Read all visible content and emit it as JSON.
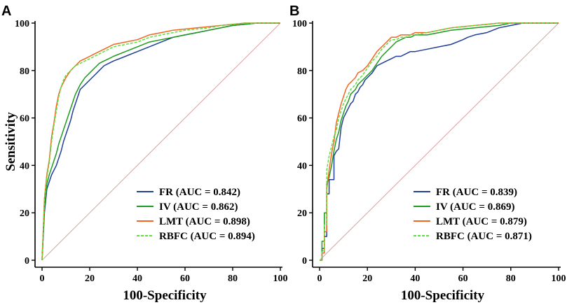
{
  "chart_data": [
    {
      "type": "line",
      "panel": "A",
      "xlabel": "100-Specificity",
      "ylabel": "Sensitivity",
      "xlim": [
        0,
        100
      ],
      "ylim": [
        0,
        100
      ],
      "xticks": [
        0,
        20,
        40,
        60,
        80,
        100
      ],
      "yticks": [
        0,
        20,
        40,
        60,
        80,
        100
      ],
      "diagonal_color": "#d9a0a0",
      "series": [
        {
          "name": "FR",
          "legend": "FR (AUC = 0.842)",
          "color": "#1f3f99",
          "dashed": false,
          "x": [
            0,
            1,
            2,
            3,
            4,
            5,
            6,
            7,
            8,
            9,
            10,
            11,
            12,
            13,
            14,
            15,
            16,
            17,
            18,
            20,
            22,
            24,
            26,
            28,
            30,
            35,
            40,
            45,
            50,
            55,
            60,
            65,
            70,
            75,
            80,
            85,
            90,
            95,
            100
          ],
          "y": [
            0,
            20,
            30,
            33,
            36,
            38,
            40,
            43,
            46,
            50,
            53,
            56,
            59,
            63,
            66,
            69,
            72,
            73,
            74,
            76,
            78,
            80,
            82,
            83,
            84,
            86,
            88,
            90,
            92,
            94,
            95,
            96,
            97,
            98,
            99,
            99.5,
            100,
            100,
            100
          ]
        },
        {
          "name": "IV",
          "legend": "IV (AUC = 0.862)",
          "color": "#1e9a1e",
          "dashed": false,
          "x": [
            0,
            1,
            2,
            3,
            4,
            5,
            6,
            7,
            8,
            9,
            10,
            11,
            12,
            13,
            14,
            15,
            16,
            18,
            20,
            22,
            24,
            26,
            28,
            30,
            35,
            40,
            45,
            50,
            55,
            60,
            65,
            70,
            75,
            80,
            85,
            90,
            95,
            100
          ],
          "y": [
            0,
            22,
            32,
            36,
            39,
            42,
            45,
            49,
            52,
            55,
            58,
            61,
            64,
            67,
            70,
            72,
            74,
            77,
            79,
            81,
            83,
            84,
            85,
            86,
            88,
            90,
            92,
            93,
            94,
            95,
            96,
            97,
            98,
            99,
            99.5,
            100,
            100,
            100
          ]
        },
        {
          "name": "LMT",
          "legend": "LMT (AUC = 0.898)",
          "color": "#f26522",
          "dashed": false,
          "x": [
            0,
            1,
            2,
            3,
            4,
            5,
            6,
            7,
            8,
            9,
            10,
            12,
            14,
            16,
            18,
            20,
            22,
            24,
            26,
            28,
            30,
            35,
            40,
            45,
            50,
            55,
            60,
            65,
            70,
            75,
            80,
            85,
            90,
            95,
            100
          ],
          "y": [
            0,
            26,
            36,
            42,
            52,
            58,
            65,
            70,
            73,
            75,
            77,
            80,
            82,
            84,
            85,
            86,
            87,
            88,
            89,
            90,
            91,
            92,
            93,
            95,
            96,
            97,
            97.5,
            98,
            98.5,
            99,
            99.5,
            100,
            100,
            100,
            100
          ]
        },
        {
          "name": "RBFC",
          "legend": "RBFC (AUC = 0.894)",
          "color": "#5ce03c",
          "dashed": true,
          "x": [
            0,
            1,
            2,
            3,
            4,
            5,
            6,
            7,
            8,
            9,
            10,
            12,
            14,
            16,
            18,
            20,
            22,
            24,
            26,
            28,
            30,
            35,
            40,
            45,
            50,
            55,
            60,
            65,
            70,
            75,
            80,
            85,
            90,
            95,
            100
          ],
          "y": [
            0,
            25,
            35,
            41,
            50,
            57,
            63,
            69,
            73,
            76,
            78,
            80,
            82,
            83,
            84,
            85,
            86,
            87,
            88,
            89,
            90,
            91,
            92,
            94,
            95,
            96,
            97,
            97.5,
            98,
            99,
            99.5,
            100,
            100,
            100,
            100
          ]
        }
      ]
    },
    {
      "type": "line",
      "panel": "B",
      "xlabel": "100-Specificity",
      "ylabel": "",
      "xlim": [
        0,
        100
      ],
      "ylim": [
        0,
        100
      ],
      "xticks": [
        0,
        20,
        40,
        60,
        80,
        100
      ],
      "yticks": [
        0,
        20,
        40,
        60,
        80,
        100
      ],
      "diagonal_color": "#d9a0a0",
      "series": [
        {
          "name": "FR",
          "legend": "FR (AUC = 0.839)",
          "color": "#1f3f99",
          "dashed": false,
          "x": [
            0,
            1,
            1,
            2,
            2,
            3,
            3,
            4,
            4,
            5,
            6,
            6,
            7,
            8,
            9,
            10,
            11,
            12,
            13,
            14,
            15,
            16,
            17,
            18,
            19,
            20,
            22,
            24,
            26,
            28,
            30,
            32,
            34,
            36,
            38,
            40,
            45,
            50,
            55,
            60,
            62,
            65,
            70,
            75,
            80,
            85,
            90,
            95,
            100
          ],
          "y": [
            0,
            0,
            5,
            5,
            10,
            10,
            28,
            28,
            34,
            34,
            34,
            44,
            46,
            47,
            56,
            60,
            62,
            64,
            66,
            67,
            70,
            71,
            73,
            74,
            76,
            77,
            79,
            82,
            83,
            84,
            85,
            86,
            86,
            87,
            88,
            88,
            89,
            90,
            91,
            93,
            94,
            95,
            96,
            98,
            99,
            100,
            100,
            100,
            100
          ]
        },
        {
          "name": "IV",
          "legend": "IV (AUC = 0.869)",
          "color": "#1e9a1e",
          "dashed": false,
          "x": [
            0,
            1,
            1,
            2,
            2,
            3,
            3,
            4,
            5,
            6,
            7,
            8,
            9,
            10,
            11,
            12,
            13,
            14,
            15,
            16,
            18,
            20,
            22,
            24,
            26,
            28,
            30,
            32,
            34,
            36,
            38,
            40,
            45,
            50,
            55,
            60,
            65,
            70,
            75,
            80,
            85,
            90,
            95,
            100
          ],
          "y": [
            0,
            0,
            8,
            8,
            20,
            20,
            32,
            35,
            40,
            46,
            51,
            54,
            59,
            62,
            65,
            67,
            70,
            71,
            72,
            74,
            76,
            78,
            80,
            83,
            86,
            88,
            90,
            92,
            93,
            94,
            94,
            95,
            95,
            96,
            97,
            97.5,
            98,
            98.5,
            99,
            100,
            100,
            100,
            100,
            100
          ]
        },
        {
          "name": "LMT",
          "legend": "LMT (AUC = 0.879)",
          "color": "#f26522",
          "dashed": false,
          "x": [
            0,
            1,
            1,
            2,
            2,
            3,
            3,
            4,
            5,
            6,
            7,
            8,
            9,
            10,
            11,
            12,
            13,
            14,
            15,
            16,
            18,
            20,
            22,
            24,
            26,
            28,
            30,
            32,
            34,
            36,
            38,
            40,
            45,
            50,
            55,
            60,
            65,
            70,
            75,
            80,
            85,
            90,
            95,
            100
          ],
          "y": [
            0,
            0,
            3,
            3,
            12,
            12,
            30,
            38,
            45,
            50,
            58,
            62,
            66,
            69,
            72,
            74,
            75,
            76,
            77,
            79,
            80,
            82,
            85,
            88,
            90,
            92,
            94,
            94,
            95,
            95,
            95,
            96,
            96,
            97,
            98,
            98.5,
            99,
            99.5,
            100,
            100,
            100,
            100,
            100,
            100
          ]
        },
        {
          "name": "RBFC",
          "legend": "RBFC (AUC = 0.871)",
          "color": "#5ce03c",
          "dashed": true,
          "x": [
            0,
            1,
            1,
            2,
            2,
            3,
            3,
            4,
            5,
            6,
            7,
            8,
            9,
            10,
            11,
            12,
            13,
            14,
            15,
            16,
            18,
            20,
            22,
            24,
            26,
            28,
            30,
            32,
            34,
            36,
            38,
            40,
            45,
            50,
            55,
            60,
            65,
            70,
            75,
            80,
            85,
            90,
            95,
            100
          ],
          "y": [
            0,
            0,
            4,
            4,
            15,
            15,
            38,
            44,
            48,
            52,
            55,
            60,
            63,
            66,
            68,
            70,
            72,
            73,
            74,
            76,
            78,
            81,
            84,
            86,
            89,
            91,
            93,
            93,
            94,
            94,
            95,
            95,
            96,
            97,
            98,
            98.5,
            99,
            99.5,
            100,
            100,
            100,
            100,
            100,
            100
          ]
        }
      ]
    }
  ]
}
